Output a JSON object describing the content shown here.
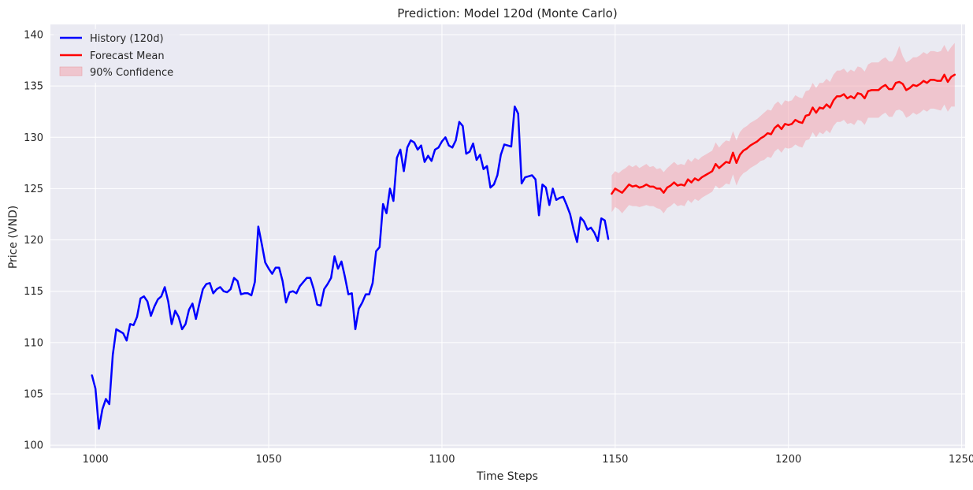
{
  "chart_data": {
    "type": "line",
    "title": "Prediction: Model 120d (Monte Carlo)",
    "xlabel": "Time Steps",
    "ylabel": "Price (VND)",
    "xlim": [
      987,
      1251
    ],
    "ylim": [
      99.7,
      141
    ],
    "x_ticks": [
      1000,
      1050,
      1100,
      1150,
      1200,
      1250
    ],
    "y_ticks": [
      100,
      105,
      110,
      115,
      120,
      125,
      130,
      135,
      140
    ],
    "grid": true,
    "legend_position": "top-left",
    "colors": {
      "history": "#0000ff",
      "forecast": "#ff0000",
      "confidence": "#f4a0aa",
      "plot_background": "#eaeaf2",
      "grid": "#ffffff"
    },
    "series": [
      {
        "name": "History (120d)",
        "x": [
          999,
          1000,
          1001,
          1002,
          1003,
          1004,
          1005,
          1006,
          1007,
          1008,
          1009,
          1010,
          1011,
          1012,
          1013,
          1014,
          1015,
          1016,
          1017,
          1018,
          1019,
          1020,
          1021,
          1022,
          1023,
          1024,
          1025,
          1026,
          1027,
          1028,
          1029,
          1030,
          1031,
          1032,
          1033,
          1034,
          1035,
          1036,
          1037,
          1038,
          1039,
          1040,
          1041,
          1042,
          1043,
          1044,
          1045,
          1046,
          1047,
          1048,
          1049,
          1050,
          1051,
          1052,
          1053,
          1054,
          1055,
          1056,
          1057,
          1058,
          1059,
          1060,
          1061,
          1062,
          1063,
          1064,
          1065,
          1066,
          1067,
          1068,
          1069,
          1070,
          1071,
          1072,
          1073,
          1074,
          1075,
          1076,
          1077,
          1078,
          1079,
          1080,
          1081,
          1082,
          1083,
          1084,
          1085,
          1086,
          1087,
          1088,
          1089,
          1090,
          1091,
          1092,
          1093,
          1094,
          1095,
          1096,
          1097,
          1098,
          1099,
          1100,
          1101,
          1102,
          1103,
          1104,
          1105,
          1106,
          1107,
          1108,
          1109,
          1110,
          1111,
          1112,
          1113,
          1114,
          1115,
          1116,
          1117,
          1118,
          1119,
          1120,
          1121,
          1122,
          1123,
          1124,
          1125,
          1126,
          1127,
          1128,
          1129,
          1130,
          1131,
          1132,
          1133,
          1134,
          1135,
          1136,
          1137,
          1138,
          1139,
          1140,
          1141,
          1142,
          1143,
          1144,
          1145,
          1146,
          1147,
          1148
        ],
        "values": [
          106.8,
          105.5,
          101.6,
          103.5,
          104.5,
          104.0,
          108.8,
          111.3,
          111.1,
          110.9,
          110.2,
          111.8,
          111.7,
          112.5,
          114.3,
          114.5,
          114.0,
          112.6,
          113.5,
          114.2,
          114.5,
          115.4,
          114.0,
          111.8,
          113.1,
          112.5,
          111.3,
          111.8,
          113.2,
          113.8,
          112.3,
          113.8,
          115.2,
          115.7,
          115.8,
          114.8,
          115.2,
          115.4,
          115.0,
          114.9,
          115.2,
          116.3,
          116.0,
          114.7,
          114.8,
          114.8,
          114.6,
          115.9,
          121.3,
          119.6,
          117.8,
          117.2,
          116.7,
          117.3,
          117.3,
          116.0,
          113.9,
          114.9,
          115.0,
          114.8,
          115.5,
          115.9,
          116.3,
          116.3,
          115.2,
          113.7,
          113.6,
          115.2,
          115.7,
          116.3,
          118.4,
          117.2,
          117.9,
          116.4,
          114.7,
          114.8,
          111.3,
          113.3,
          113.9,
          114.7,
          114.7,
          115.8,
          118.9,
          119.3,
          123.5,
          122.6,
          125.0,
          123.8,
          128.0,
          128.8,
          126.7,
          129.0,
          129.7,
          129.5,
          128.8,
          129.2,
          127.6,
          128.2,
          127.7,
          128.8,
          129.0,
          129.6,
          130.0,
          129.2,
          129.0,
          129.7,
          131.5,
          131.1,
          128.4,
          128.6,
          129.4,
          127.8,
          128.3,
          126.9,
          127.2,
          125.1,
          125.4,
          126.3,
          128.3,
          129.3,
          129.2,
          129.1,
          133.0,
          132.3,
          125.5,
          126.1,
          126.2,
          126.3,
          125.9,
          122.4,
          125.4,
          125.1,
          123.4,
          125.0,
          123.9,
          124.1,
          124.2,
          123.4,
          122.5,
          121.0,
          119.8,
          122.2,
          121.8,
          121.0,
          121.2,
          120.7,
          119.9,
          122.1,
          121.9,
          120.1
        ]
      },
      {
        "name": "Forecast Mean",
        "x": [
          1149,
          1150,
          1151,
          1152,
          1153,
          1154,
          1155,
          1156,
          1157,
          1158,
          1159,
          1160,
          1161,
          1162,
          1163,
          1164,
          1165,
          1166,
          1167,
          1168,
          1169,
          1170,
          1171,
          1172,
          1173,
          1174,
          1175,
          1176,
          1177,
          1178,
          1179,
          1180,
          1181,
          1182,
          1183,
          1184,
          1185,
          1186,
          1187,
          1188,
          1189,
          1190,
          1191,
          1192,
          1193,
          1194,
          1195,
          1196,
          1197,
          1198,
          1199,
          1200,
          1201,
          1202,
          1203,
          1204,
          1205,
          1206,
          1207,
          1208,
          1209,
          1210,
          1211,
          1212,
          1213,
          1214,
          1215,
          1216,
          1217,
          1218,
          1219,
          1220,
          1221,
          1222,
          1223,
          1224,
          1225,
          1226,
          1227,
          1228,
          1229,
          1230,
          1231,
          1232,
          1233,
          1234,
          1235,
          1236,
          1237,
          1238,
          1239,
          1240,
          1241,
          1242,
          1243,
          1244,
          1245,
          1246,
          1247,
          1248
        ],
        "values": [
          124.5,
          125.0,
          124.8,
          124.6,
          125.0,
          125.4,
          125.2,
          125.3,
          125.1,
          125.2,
          125.4,
          125.2,
          125.2,
          125.0,
          125.0,
          124.6,
          125.1,
          125.3,
          125.6,
          125.3,
          125.4,
          125.3,
          125.9,
          125.6,
          126.0,
          125.8,
          126.1,
          126.3,
          126.5,
          126.7,
          127.4,
          127.0,
          127.3,
          127.6,
          127.5,
          128.5,
          127.5,
          128.3,
          128.7,
          128.9,
          129.2,
          129.4,
          129.6,
          129.9,
          130.1,
          130.4,
          130.3,
          130.9,
          131.2,
          130.8,
          131.3,
          131.2,
          131.3,
          131.7,
          131.5,
          131.4,
          132.1,
          132.2,
          132.9,
          132.4,
          132.9,
          132.8,
          133.2,
          132.9,
          133.6,
          134.0,
          134.0,
          134.2,
          133.8,
          134.0,
          133.8,
          134.3,
          134.2,
          133.8,
          134.5,
          134.6,
          134.6,
          134.6,
          134.9,
          135.1,
          134.7,
          134.7,
          135.3,
          135.4,
          135.2,
          134.6,
          134.8,
          135.1,
          135.0,
          135.2,
          135.5,
          135.3,
          135.6,
          135.6,
          135.5,
          135.5,
          136.1,
          135.4,
          135.9,
          136.1
        ]
      }
    ],
    "confidence_band": {
      "name": "90% Confidence",
      "x": [
        1149,
        1150,
        1151,
        1152,
        1153,
        1154,
        1155,
        1156,
        1157,
        1158,
        1159,
        1160,
        1161,
        1162,
        1163,
        1164,
        1165,
        1166,
        1167,
        1168,
        1169,
        1170,
        1171,
        1172,
        1173,
        1174,
        1175,
        1176,
        1177,
        1178,
        1179,
        1180,
        1181,
        1182,
        1183,
        1184,
        1185,
        1186,
        1187,
        1188,
        1189,
        1190,
        1191,
        1192,
        1193,
        1194,
        1195,
        1196,
        1197,
        1198,
        1199,
        1200,
        1201,
        1202,
        1203,
        1204,
        1205,
        1206,
        1207,
        1208,
        1209,
        1210,
        1211,
        1212,
        1213,
        1214,
        1215,
        1216,
        1217,
        1218,
        1219,
        1220,
        1221,
        1222,
        1223,
        1224,
        1225,
        1226,
        1227,
        1228,
        1229,
        1230,
        1231,
        1232,
        1233,
        1234,
        1235,
        1236,
        1237,
        1238,
        1239,
        1240,
        1241,
        1242,
        1243,
        1244,
        1245,
        1246,
        1247,
        1248
      ],
      "upper": [
        126.3,
        126.7,
        126.5,
        126.8,
        127.0,
        127.3,
        127.1,
        127.3,
        127.0,
        127.2,
        127.4,
        127.1,
        127.2,
        126.9,
        127.0,
        126.6,
        127.0,
        127.3,
        127.6,
        127.3,
        127.4,
        127.3,
        127.9,
        127.6,
        128.0,
        127.8,
        128.1,
        128.3,
        128.5,
        128.7,
        129.5,
        129.0,
        129.4,
        129.7,
        129.6,
        130.6,
        129.7,
        130.5,
        130.9,
        131.1,
        131.4,
        131.6,
        131.8,
        132.1,
        132.4,
        132.7,
        132.6,
        133.2,
        133.5,
        133.1,
        133.6,
        133.5,
        133.6,
        134.1,
        133.9,
        133.8,
        134.5,
        134.6,
        135.3,
        134.8,
        135.3,
        135.3,
        135.7,
        135.4,
        136.1,
        136.5,
        136.5,
        136.7,
        136.3,
        136.6,
        136.4,
        136.9,
        136.8,
        136.4,
        137.1,
        137.3,
        137.3,
        137.3,
        137.6,
        137.8,
        137.4,
        137.4,
        138.0,
        138.9,
        137.9,
        137.3,
        137.5,
        137.8,
        137.8,
        138.0,
        138.3,
        138.1,
        138.4,
        138.4,
        138.3,
        138.4,
        139.0,
        138.3,
        138.8,
        139.2
      ],
      "lower": [
        122.7,
        123.2,
        123.0,
        122.6,
        123.0,
        123.4,
        123.3,
        123.3,
        123.2,
        123.3,
        123.4,
        123.3,
        123.3,
        123.1,
        123.0,
        122.6,
        123.1,
        123.3,
        123.6,
        123.3,
        123.4,
        123.3,
        123.9,
        123.6,
        124.0,
        123.8,
        124.1,
        124.3,
        124.5,
        124.7,
        125.3,
        125.0,
        125.2,
        125.5,
        125.4,
        126.4,
        125.3,
        126.1,
        126.5,
        126.7,
        127.0,
        127.2,
        127.4,
        127.7,
        127.8,
        128.1,
        128.0,
        128.6,
        128.9,
        128.5,
        129.0,
        128.9,
        129.0,
        129.3,
        129.1,
        129.0,
        129.7,
        129.8,
        130.5,
        130.0,
        130.5,
        130.3,
        130.7,
        130.4,
        131.1,
        131.5,
        131.5,
        131.7,
        131.3,
        131.4,
        131.2,
        131.7,
        131.6,
        131.2,
        131.9,
        131.9,
        131.9,
        131.9,
        132.2,
        132.4,
        132.0,
        132.0,
        132.6,
        132.7,
        132.5,
        131.9,
        132.1,
        132.4,
        132.2,
        132.4,
        132.7,
        132.5,
        132.8,
        132.8,
        132.7,
        132.6,
        133.2,
        132.5,
        133.0,
        133.0
      ]
    }
  }
}
